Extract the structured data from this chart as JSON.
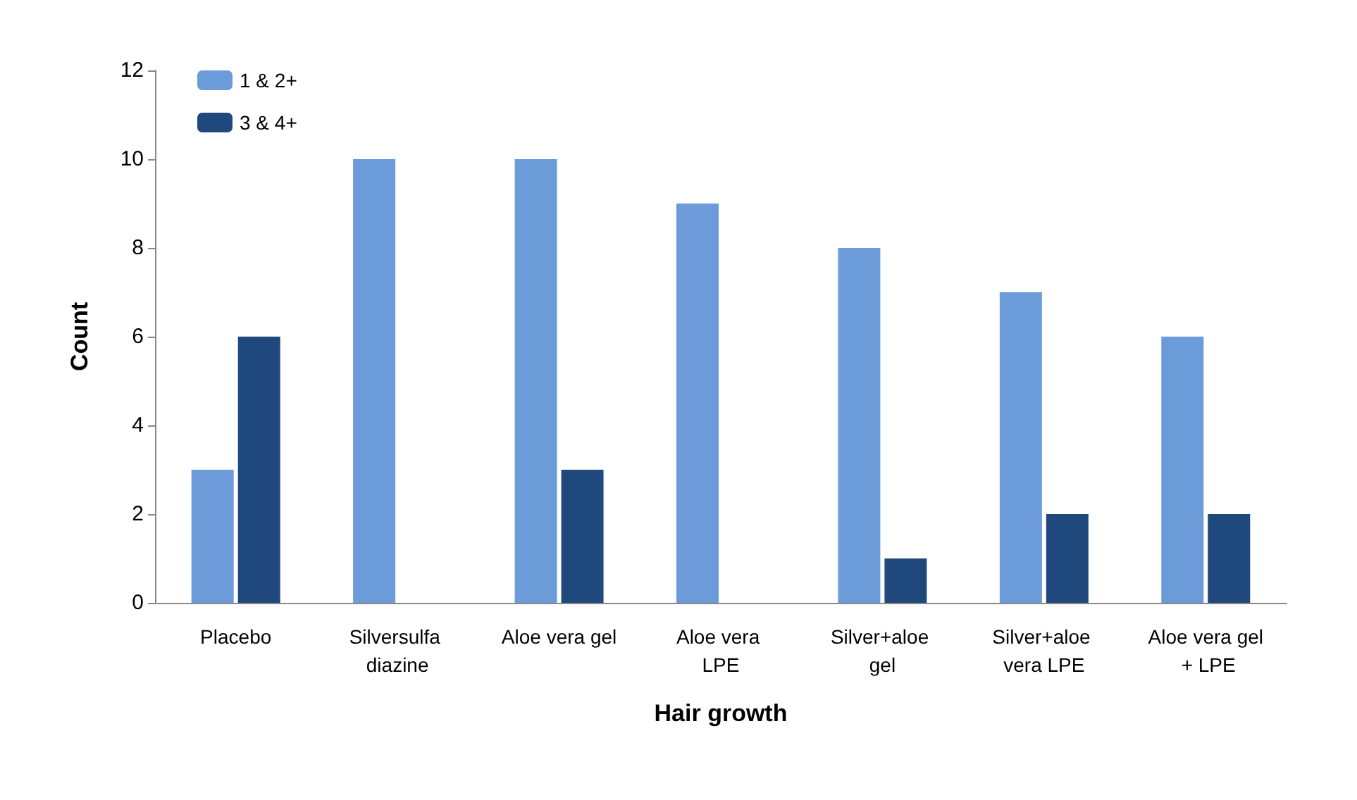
{
  "chart_data": {
    "type": "bar",
    "xlabel": "Hair growth",
    "ylabel": "Count",
    "categories": [
      "Placebo",
      "Silversulfa diazine",
      "Aloe vera gel",
      "Aloe vera LPE",
      "Silver+aloe gel",
      "Silver+aloe vera LPE",
      "Aloe vera gel + LPE"
    ],
    "series": [
      {
        "name": "1 & 2+",
        "color": "#6b9bd9",
        "values": [
          3,
          10,
          10,
          9,
          8,
          7,
          6
        ]
      },
      {
        "name": "3 & 4+",
        "color": "#1f497d",
        "values": [
          6,
          0,
          3,
          0,
          1,
          2,
          2
        ]
      }
    ],
    "ylim": [
      0,
      12
    ],
    "yticks": [
      0,
      2,
      4,
      6,
      8,
      10,
      12
    ],
    "grid": false,
    "legend": "top left"
  }
}
